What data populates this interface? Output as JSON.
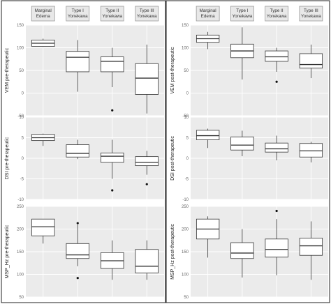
{
  "chart_data": {
    "type": "boxplot",
    "groups": [
      [
        "Marginal",
        "Edema"
      ],
      [
        "Type I",
        "Yonekawa"
      ],
      [
        "Type II",
        "Yonekawa"
      ],
      [
        "Type III",
        "Yonekawa"
      ]
    ],
    "panels": [
      {
        "title": "VEM pre-therapeutic",
        "ylabel": "VEM pre-therapeutic",
        "ylim": [
          -50,
          150
        ],
        "yticks": [
          -50,
          0,
          50,
          100,
          150
        ],
        "boxes": [
          {
            "min": 102,
            "q1": 103,
            "median": 110,
            "q3": 117,
            "max": 120,
            "outliers": []
          },
          {
            "min": 3,
            "q1": 47,
            "median": 79,
            "q3": 92,
            "max": 117,
            "outliers": []
          },
          {
            "min": 13,
            "q1": 47,
            "median": 70,
            "q3": 80,
            "max": 100,
            "outliers": [
              -38
            ]
          },
          {
            "min": -45,
            "q1": -3,
            "median": 33,
            "q3": 65,
            "max": 107,
            "outliers": []
          }
        ]
      },
      {
        "title": "VEM post-therapeutic",
        "ylabel": "VEM post-therapeutic",
        "ylim": [
          -50,
          150
        ],
        "yticks": [
          -50,
          0,
          50,
          100,
          150
        ],
        "boxes": [
          {
            "min": 97,
            "q1": 112,
            "median": 120,
            "q3": 128,
            "max": 135,
            "outliers": []
          },
          {
            "min": 30,
            "q1": 78,
            "median": 93,
            "q3": 108,
            "max": 145,
            "outliers": []
          },
          {
            "min": 47,
            "q1": 70,
            "median": 80,
            "q3": 93,
            "max": 100,
            "outliers": [
              25
            ]
          },
          {
            "min": 33,
            "q1": 55,
            "median": 63,
            "q3": 87,
            "max": 107,
            "outliers": []
          }
        ]
      },
      {
        "title": "DSI pre-therapeutic",
        "ylabel": "DSI pre-therapeutic",
        "ylim": [
          -10,
          10
        ],
        "yticks": [
          -10,
          -5,
          0,
          5,
          10
        ],
        "boxes": [
          {
            "min": 3,
            "q1": 4.3,
            "median": 5,
            "q3": 5.8,
            "max": 6,
            "outliers": []
          },
          {
            "min": -0.2,
            "q1": 0.3,
            "median": 1.2,
            "q3": 3.3,
            "max": 4.5,
            "outliers": []
          },
          {
            "min": -5,
            "q1": -1,
            "median": 0.5,
            "q3": 1.3,
            "max": 4.5,
            "outliers": [
              -7.8
            ]
          },
          {
            "min": -4,
            "q1": -1.8,
            "median": -1,
            "q3": 0.4,
            "max": 1.8,
            "outliers": [
              -6.3
            ]
          }
        ]
      },
      {
        "title": "DSI post-therapeutic",
        "ylabel": "DSI post-therapeutic",
        "ylim": [
          -10,
          10
        ],
        "yticks": [
          -10,
          -5,
          0,
          5,
          10
        ],
        "boxes": [
          {
            "min": 2.5,
            "q1": 4.5,
            "median": 5.5,
            "q3": 6.8,
            "max": 7.2,
            "outliers": []
          },
          {
            "min": 0.5,
            "q1": 2,
            "median": 3.2,
            "q3": 5.2,
            "max": 6.7,
            "outliers": []
          },
          {
            "min": -0.5,
            "q1": 1.5,
            "median": 2.3,
            "q3": 3.7,
            "max": 5.5,
            "outliers": []
          },
          {
            "min": -1,
            "q1": 0.3,
            "median": 1.8,
            "q3": 3.6,
            "max": 4,
            "outliers": []
          }
        ]
      },
      {
        "title": "MSP_Hz pre-therapeutic",
        "ylabel": "MSP_Hz pre-therapeutic",
        "ylim": [
          50,
          250
        ],
        "yticks": [
          50,
          100,
          150,
          200,
          250
        ],
        "boxes": [
          {
            "min": 168,
            "q1": 185,
            "median": 205,
            "q3": 222,
            "max": 222,
            "outliers": []
          },
          {
            "min": 118,
            "q1": 135,
            "median": 143,
            "q3": 168,
            "max": 210,
            "outliers": [
              213,
              92
            ]
          },
          {
            "min": 88,
            "q1": 113,
            "median": 130,
            "q3": 148,
            "max": 175,
            "outliers": []
          },
          {
            "min": 88,
            "q1": 103,
            "median": 118,
            "q3": 155,
            "max": 175,
            "outliers": []
          }
        ]
      },
      {
        "title": "MSP_Hz post-therapeutic",
        "ylabel": "MSP_Hz post-therapeutic",
        "ylim": [
          50,
          250
        ],
        "yticks": [
          50,
          100,
          150,
          200,
          250
        ],
        "boxes": [
          {
            "min": 137,
            "q1": 178,
            "median": 200,
            "q3": 222,
            "max": 228,
            "outliers": []
          },
          {
            "min": 93,
            "q1": 135,
            "median": 147,
            "q3": 170,
            "max": 200,
            "outliers": []
          },
          {
            "min": 98,
            "q1": 138,
            "median": 155,
            "q3": 178,
            "max": 222,
            "outliers": [
              240
            ]
          },
          {
            "min": 88,
            "q1": 142,
            "median": 163,
            "q3": 180,
            "max": 217,
            "outliers": []
          }
        ]
      }
    ]
  }
}
